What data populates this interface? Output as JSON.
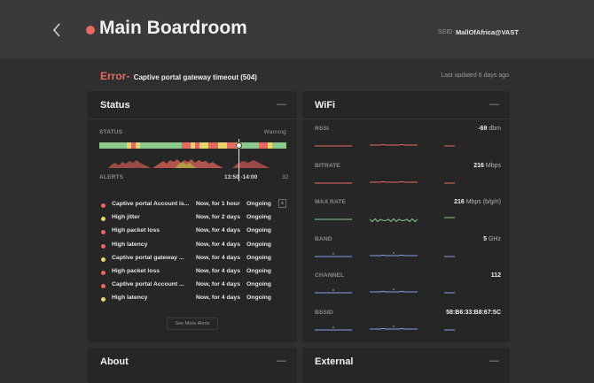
{
  "header": {
    "title": "Main Boardroom",
    "ssid_label": "SSID",
    "ssid_value": "MallOfAfrica@VAST"
  },
  "error": {
    "word": "Error-",
    "message": "Captive portal gateway timeout (504)",
    "updated": "Last updated 6 days ago"
  },
  "status_card": {
    "title": "Status",
    "collapse": "—",
    "status_label": "STATUS",
    "warning_label": "Warning",
    "alerts_label": "ALERTS",
    "time_range": "13:50 -14:00",
    "alert_count": "32",
    "timeline_colors": [
      "#8cc98b",
      "#8cc98b",
      "#8cc98b",
      "#8cc98b",
      "#8cc98b",
      "#8cc98b",
      "#e9d46a",
      "#e46a62",
      "#e9d46a",
      "#8cc98b",
      "#8cc98b",
      "#8cc98b",
      "#8cc98b",
      "#8cc98b",
      "#8cc98b",
      "#8cc98b",
      "#8cc98b",
      "#8cc98b",
      "#e46a62",
      "#e46a62",
      "#e9d46a",
      "#e46a62",
      "#e9d46a",
      "#e9d46a",
      "#e46a62",
      "#e46a62",
      "#e9d46a",
      "#e9d46a",
      "#e46a62",
      "#e46a62",
      "#e9d46a",
      "#8cc98b",
      "#8cc98b",
      "#8cc98b",
      "#8cc98b",
      "#e46a62",
      "#e46a62",
      "#e9d46a",
      "#8cc98b",
      "#8cc98b",
      "#8cc98b"
    ],
    "alerts": [
      {
        "name": "Captive portal Account is...",
        "when": "Now, for 1 hour",
        "state": "Ongoing",
        "color": "#e46a62",
        "box": "x"
      },
      {
        "name": "High jitter",
        "when": "Now, for 2 days",
        "state": "Ongoing",
        "color": "#e9d46a"
      },
      {
        "name": "High packet loss",
        "when": "Now, for 4 days",
        "state": "Ongoing",
        "color": "#e46a62"
      },
      {
        "name": "High latency",
        "when": "Now, for 4 days",
        "state": "Ongoing",
        "color": "#e46a62"
      },
      {
        "name": "Captive portal gateway ...",
        "when": "Now, for 4 days",
        "state": "Ongoing",
        "color": "#e9d46a"
      },
      {
        "name": "High packet loss",
        "when": "Now, for 4 days",
        "state": "Ongoing",
        "color": "#e46a62"
      },
      {
        "name": "Captive portal Account ...",
        "when": "Now, for 4 days",
        "state": "Ongoing",
        "color": "#e46a62"
      },
      {
        "name": "High latency",
        "when": "Now, for 4 days",
        "state": "Ongoing",
        "color": "#e9d46a"
      }
    ],
    "more_alerts": "See More Alerts"
  },
  "wifi_card": {
    "title": "WiFi",
    "collapse": "—",
    "metrics": [
      {
        "label": "RSSI",
        "value": "-69",
        "unit": " dbm",
        "line_color": "#e46a62"
      },
      {
        "label": "BITRATE",
        "value": "216",
        "unit": " Mbps",
        "line_color": "#e46a62"
      },
      {
        "label": "MAX RATE",
        "value": "216",
        "unit": " Mbps (b/g/n)",
        "line_color": "#8cc98b"
      },
      {
        "label": "BAND",
        "value": "5",
        "unit": " GHz",
        "line_color": "#8a9de8"
      },
      {
        "label": "CHANNEL",
        "value": "112",
        "unit": "",
        "line_color": "#8a9de8"
      },
      {
        "label": "BSSID",
        "value": "58:B6:33:B8:67:5C",
        "unit": "",
        "line_color": "#8a9de8"
      }
    ]
  },
  "about_card": {
    "title": "About",
    "collapse": "—"
  },
  "external_card": {
    "title": "External",
    "collapse": "—"
  },
  "colors": {
    "accent_red": "#e46a62",
    "ok_green": "#8cc98b",
    "warn_yellow": "#e9d46a",
    "info_blue": "#8a9de8"
  }
}
